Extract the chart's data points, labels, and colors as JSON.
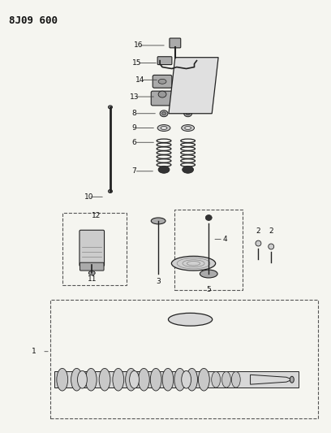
{
  "title": "8J09 600",
  "bg_color": "#f5f5f0",
  "fig_width": 4.08,
  "fig_height": 5.33,
  "dpi": 100,
  "ec": "#222222",
  "gray": "#888888",
  "light": "#cccccc",
  "mid": "#aaaaaa",
  "dark": "#333333"
}
